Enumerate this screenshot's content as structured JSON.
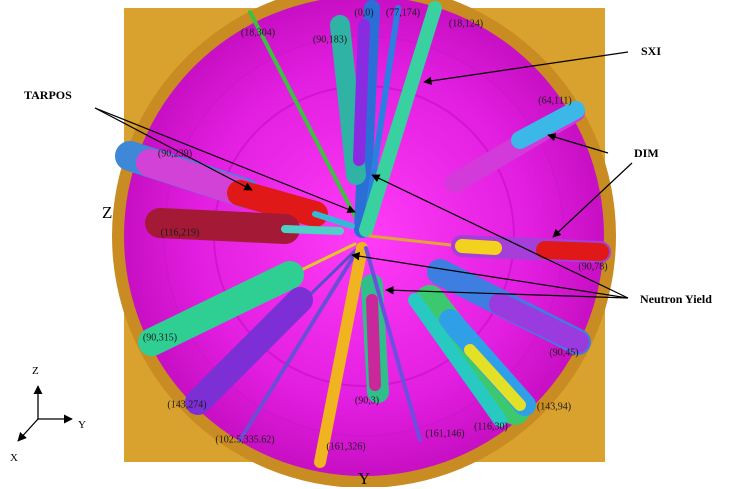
{
  "callouts": {
    "sxi": "SXI",
    "tarpos": "TARPOS",
    "dim": "DIM",
    "neutron_yield": "Neutron Yield"
  },
  "axes": {
    "z_large": "Z",
    "y_large": "Y",
    "triad_z": "Z",
    "triad_y": "Y",
    "triad_x": "X"
  },
  "ports": [
    "(18,304)",
    "(0,0)",
    "(77,174)",
    "(18,124)",
    "(90,183)",
    "(64,111)",
    "(90,239)",
    "(116,219)",
    "(90,78)",
    "(90,315)",
    "(90,45)",
    "(143,274)",
    "(90,3)",
    "(143,94)",
    "(116,30)",
    "(102.5,335.62)",
    "(161,326)",
    "(161,146)"
  ],
  "colors": {
    "chamber_wall": "#d9a12e",
    "chamber_floor": "#e31ce3",
    "backdrop": "#ffffff"
  }
}
